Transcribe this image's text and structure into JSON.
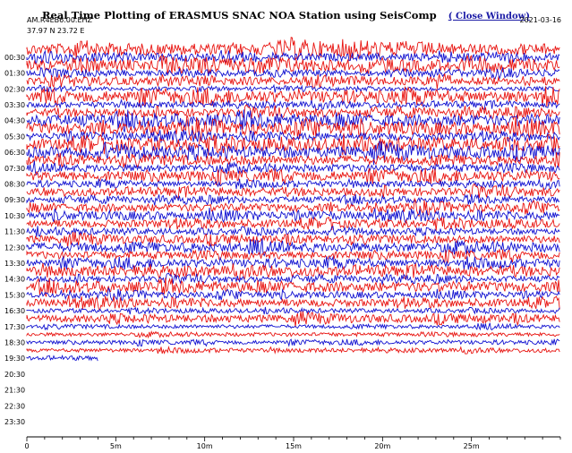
{
  "header": {
    "title": "Real Time Plotting of ERASMUS SNAC NOA Station using SeisComp",
    "close_link": "( Close Window)",
    "station": "AM.R4EB6.00.EHZ",
    "coords": "37.97 N 23.72 E",
    "date": "2021-03-16"
  },
  "colors": {
    "trace_a": "#e8130f",
    "trace_b": "#1010d0",
    "axis": "#000000"
  },
  "chart_data": {
    "type": "line",
    "y_tick_labels": [
      "00:30",
      "01:30",
      "02:30",
      "03:30",
      "04:30",
      "05:30",
      "06:30",
      "07:30",
      "08:30",
      "09:30",
      "10:30",
      "11:30",
      "12:30",
      "13:30",
      "14:30",
      "15:30",
      "16:30",
      "17:30",
      "18:30",
      "19:30",
      "20:30",
      "21:30",
      "22:30",
      "23:30"
    ],
    "x_ticks": [
      0,
      5,
      10,
      15,
      20,
      25
    ],
    "x_tick_labels": [
      "0",
      "5m",
      "10m",
      "15m",
      "20m",
      "25m"
    ],
    "xlim": [
      0,
      30
    ],
    "trace_minutes_per_line": 30,
    "total_lines": 48,
    "data_lines": 40,
    "last_line_minutes": 4,
    "line_amplitudes": [
      6,
      4,
      6,
      3,
      4,
      2,
      6,
      3,
      4,
      6,
      6,
      4,
      6,
      6,
      5,
      4,
      5,
      3,
      4,
      3,
      4,
      4,
      4,
      3,
      4,
      5,
      4,
      4,
      5,
      3,
      5,
      3,
      4,
      2,
      4,
      2,
      2,
      2,
      2,
      2
    ]
  }
}
